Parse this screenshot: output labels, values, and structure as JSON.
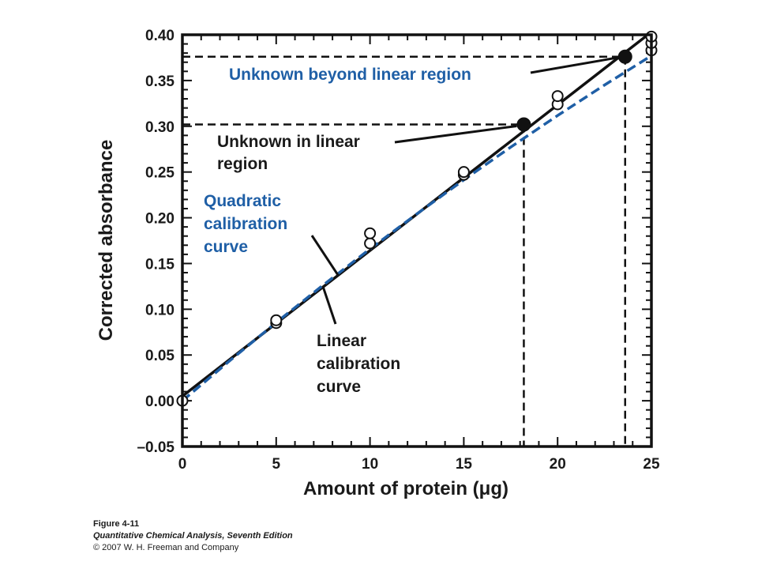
{
  "chart_data": {
    "type": "scatter",
    "xlabel": "Amount of protein (μg)",
    "ylabel": "Corrected absorbance",
    "xlim": [
      0,
      25
    ],
    "ylim": [
      -0.05,
      0.4
    ],
    "x_ticks": [
      "0",
      "5",
      "10",
      "15",
      "20",
      "25"
    ],
    "y_ticks": [
      "–0.05",
      "0.00",
      "0.05",
      "0.10",
      "0.15",
      "0.20",
      "0.25",
      "0.30",
      "0.35",
      "0.40"
    ],
    "x_tick_values": [
      0,
      5,
      10,
      15,
      20,
      25
    ],
    "y_tick_values": [
      -0.05,
      0.0,
      0.05,
      0.1,
      0.15,
      0.2,
      0.25,
      0.3,
      0.35,
      0.4
    ],
    "grid": false,
    "series": [
      {
        "kind": "points",
        "style": "open-circle",
        "x": [
          0,
          5,
          5,
          10,
          10,
          15,
          15,
          20,
          20,
          25,
          25,
          25
        ],
        "y": [
          0.0,
          0.085,
          0.088,
          0.172,
          0.183,
          0.247,
          0.25,
          0.324,
          0.333,
          0.383,
          0.391,
          0.398
        ]
      },
      {
        "kind": "line",
        "style": "solid",
        "color": "#111111",
        "x": [
          0,
          25
        ],
        "y": [
          0.005,
          0.403
        ]
      },
      {
        "kind": "curve",
        "style": "dashed",
        "color": "#1f5fa6",
        "x": [
          0,
          2.5,
          5,
          7.5,
          10,
          12.5,
          15,
          17.5,
          20,
          22.5,
          25
        ],
        "y": [
          0.0,
          0.0434,
          0.0855,
          0.1264,
          0.1659,
          0.2043,
          0.2413,
          0.2772,
          0.3117,
          0.3451,
          0.3771
        ]
      },
      {
        "kind": "unknowns",
        "style": "filled-circle",
        "x": [
          18.2,
          23.6
        ],
        "y": [
          0.302,
          0.376
        ]
      }
    ],
    "annotations": {
      "unknown_beyond": "Unknown beyond linear region",
      "unknown_linear_1": "Unknown in linear",
      "unknown_linear_2": "region",
      "quadratic_1": "Quadratic",
      "quadratic_2": "calibration",
      "quadratic_3": "curve",
      "linear_1": "Linear",
      "linear_2": "calibration",
      "linear_3": "curve"
    },
    "colors": {
      "linear": "#111111",
      "quadratic": "#1f5fa6",
      "text": "#1a1a1a"
    }
  },
  "caption": {
    "figure": "Figure 4-11",
    "book": "Quantitative Chemical Analysis, Seventh Edition",
    "copyright": "© 2007 W. H. Freeman and Company"
  }
}
